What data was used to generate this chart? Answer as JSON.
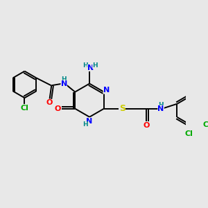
{
  "background_color": "#e8e8e8",
  "atom_colors": {
    "C": "#000000",
    "N": "#0000ff",
    "O": "#ff0000",
    "S": "#cccc00",
    "Cl": "#00aa00",
    "H": "#008888",
    "NH2": "#008888"
  },
  "bond_color": "#000000",
  "bond_width": 1.4,
  "font_size_atom": 8,
  "font_size_small": 6.5
}
